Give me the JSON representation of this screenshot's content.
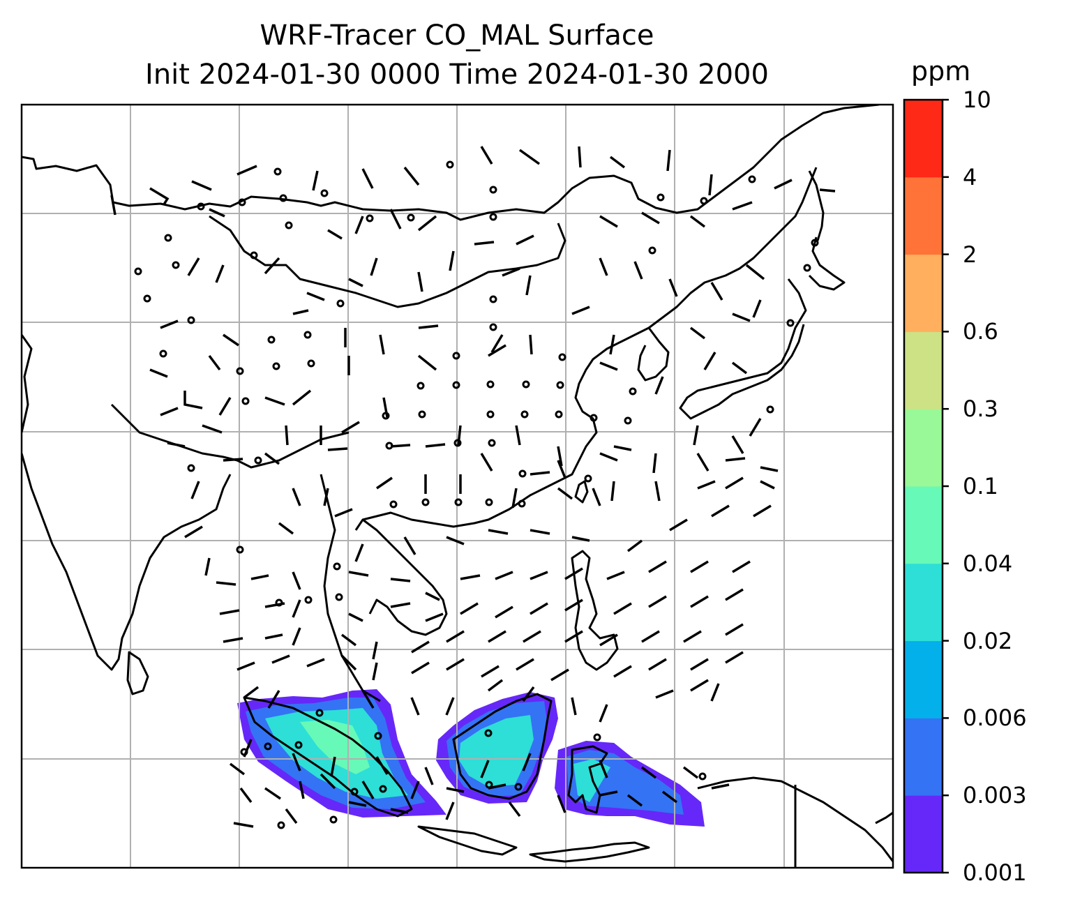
{
  "title_line1": "WRF-Tracer CO_MAL Surface",
  "title_line2": "Init 2024-01-30 0000 Time 2024-01-30 2000",
  "colorbar": {
    "unit": "ppm",
    "levels": [
      "0.001",
      "0.003",
      "0.006",
      "0.02",
      "0.04",
      "0.1",
      "0.3",
      "0.6",
      "2",
      "4",
      "10"
    ],
    "colors": [
      "#6628f8",
      "#3473f4",
      "#04b0ea",
      "#2ddfd6",
      "#67f9b8",
      "#99f897",
      "#cde185",
      "#ffaf5e",
      "#ff7338",
      "#fe2916"
    ]
  },
  "map": {
    "coastline_color": "#000000",
    "grid_color": "#b0b0b0",
    "barb_color": "#000000"
  }
}
